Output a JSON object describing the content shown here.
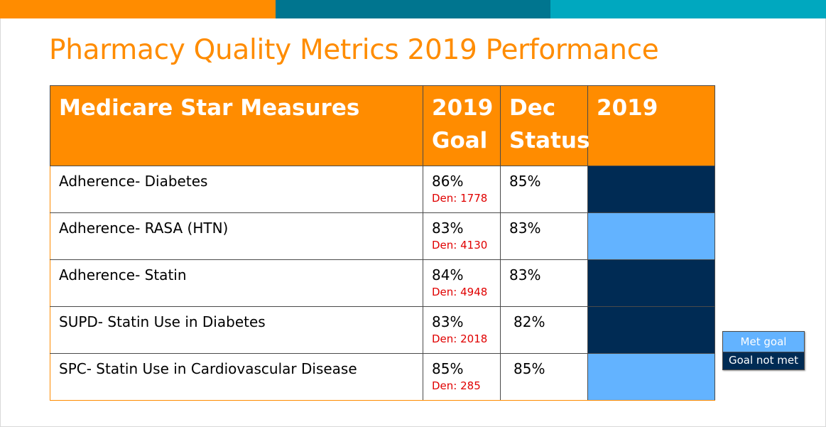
{
  "title": "Pharmacy Quality Metrics 2019 Performance",
  "colors": {
    "accent_orange": "#ff8c00",
    "band_teal_dark": "#00758f",
    "band_teal_light": "#00a8bf",
    "met_goal": "#63b3ff",
    "goal_not_met": "#002b54",
    "denominator_red": "#e00000"
  },
  "table": {
    "headers": {
      "measure": "Medicare Star Measures",
      "goal": "2019 Goal",
      "dec_status": "Dec Status",
      "year": "2019"
    },
    "rows": [
      {
        "measure": "Adherence- Diabetes",
        "goal": "86%",
        "den": "Den: 1778",
        "dec_status": "85%",
        "status": "Goal not met"
      },
      {
        "measure": "Adherence- RASA (HTN)",
        "goal": "83%",
        "den": "Den: 4130",
        "dec_status": "83%",
        "status": "Met goal"
      },
      {
        "measure": "Adherence- Statin",
        "goal": "84%",
        "den": "Den: 4948",
        "dec_status": "83%",
        "status": "Goal not met"
      },
      {
        "measure": "SUPD- Statin Use in Diabetes",
        "goal": "83%",
        "den": "Den: 2018",
        "dec_status": "82%",
        "status": "Goal not met"
      },
      {
        "measure": "SPC- Statin Use in Cardiovascular Disease",
        "goal": "85%",
        "den": "Den: 285",
        "dec_status": "85%",
        "status": "Met goal"
      }
    ]
  },
  "legend": {
    "met": "Met goal",
    "not_met": "Goal not met"
  }
}
